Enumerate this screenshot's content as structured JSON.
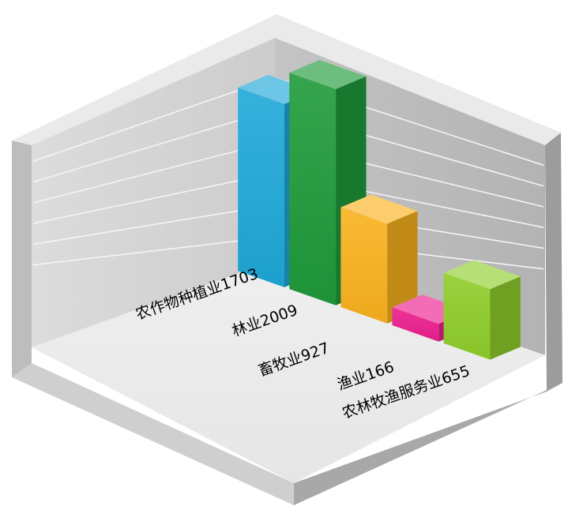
{
  "chart_data": {
    "type": "bar",
    "categories": [
      "农作物种植业",
      "林业",
      "畜牧业",
      "渔业",
      "农林牧渔服务业"
    ],
    "values": [
      1703,
      2009,
      927,
      166,
      655
    ],
    "labels": [
      "农作物种植业1703",
      "林业2009",
      "畜牧业927",
      "渔业166",
      "农林牧渔服务业655"
    ],
    "colors": [
      "#1ea8d8",
      "#1f9a3a",
      "#f9b21e",
      "#ec1f8e",
      "#8fcd2a"
    ],
    "ylim": [
      0,
      2200
    ],
    "grid": true,
    "legend": "none",
    "style": "3d-box"
  }
}
